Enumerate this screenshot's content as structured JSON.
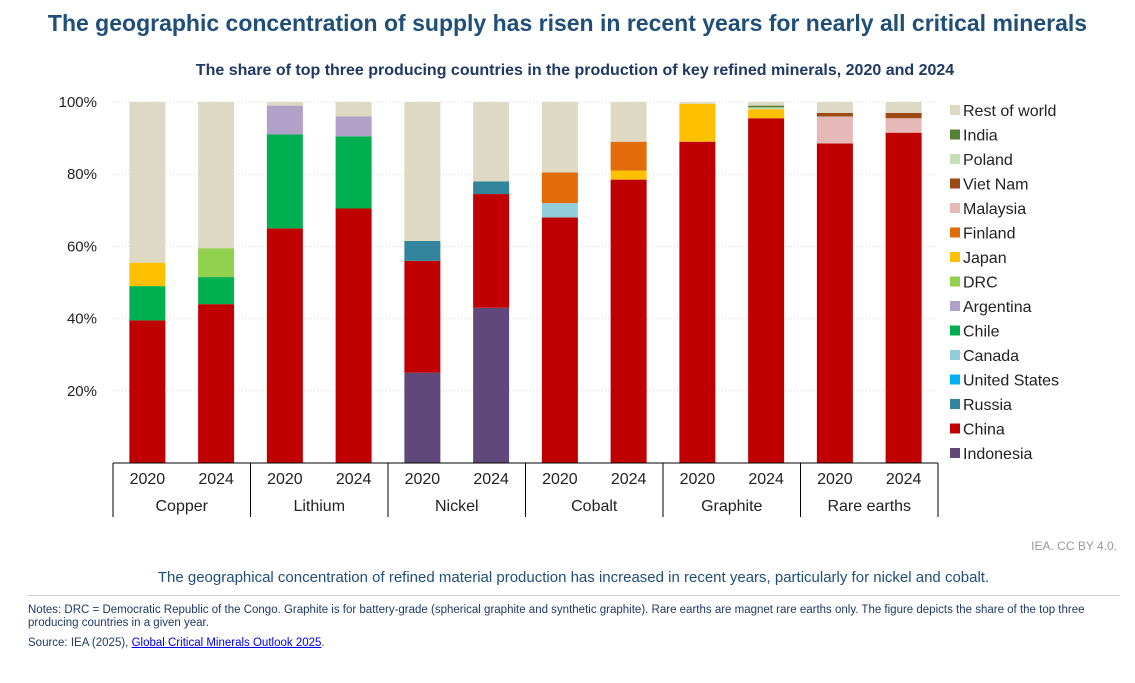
{
  "header": {
    "title": "The geographic concentration of supply has risen in recent years for nearly all critical minerals",
    "subtitle": "The share of top three producing countries in the production of key refined minerals, 2020 and 2024"
  },
  "footer": {
    "credit": "IEA. CC BY 4.0.",
    "caption": "The geographical concentration of refined material production has increased in recent years, particularly for nickel and cobalt.",
    "notes": "Notes: DRC = Democratic Republic of the Congo. Graphite is for battery-grade (spherical graphite and synthetic graphite). Rare earths are magnet rare earths only. The figure depicts the share of the top three producing countries in a given year.",
    "source_prefix": "Source: IEA (2025), ",
    "source_link": "Global Critical Minerals Outlook 2025",
    "source_suffix": "."
  },
  "chart_data": {
    "type": "bar",
    "stacked": true,
    "ylim": [
      0,
      100
    ],
    "yticks": [
      20,
      40,
      60,
      80,
      100
    ],
    "ytick_labels": [
      "20%",
      "40%",
      "60%",
      "80%",
      "100%"
    ],
    "groups": [
      "Copper",
      "Lithium",
      "Nickel",
      "Cobalt",
      "Graphite",
      "Rare earths"
    ],
    "years": [
      "2020",
      "2024"
    ],
    "legend": [
      {
        "name": "Rest of world",
        "color": "#ddd9c3"
      },
      {
        "name": "India",
        "color": "#548235"
      },
      {
        "name": "Poland",
        "color": "#c5e0b4"
      },
      {
        "name": "Viet Nam",
        "color": "#9c4a16"
      },
      {
        "name": "Malaysia",
        "color": "#e6b8b7"
      },
      {
        "name": "Finland",
        "color": "#e26b0a"
      },
      {
        "name": "Japan",
        "color": "#ffc000"
      },
      {
        "name": "DRC",
        "color": "#92d050"
      },
      {
        "name": "Argentina",
        "color": "#b1a0c7"
      },
      {
        "name": "Chile",
        "color": "#00b050"
      },
      {
        "name": "Canada",
        "color": "#92cddc"
      },
      {
        "name": "United States",
        "color": "#00b0f0"
      },
      {
        "name": "Russia",
        "color": "#31849b"
      },
      {
        "name": "China",
        "color": "#c00000"
      },
      {
        "name": "Indonesia",
        "color": "#60497a"
      }
    ],
    "bars": [
      {
        "group": "Copper",
        "year": "2020",
        "segments": [
          {
            "country": "China",
            "value": 39.5
          },
          {
            "country": "Chile",
            "value": 9.5
          },
          {
            "country": "Japan",
            "value": 6.5
          },
          {
            "country": "Rest of world",
            "value": 44.5
          }
        ]
      },
      {
        "group": "Copper",
        "year": "2024",
        "segments": [
          {
            "country": "China",
            "value": 44
          },
          {
            "country": "Chile",
            "value": 7.5
          },
          {
            "country": "DRC",
            "value": 8
          },
          {
            "country": "Rest of world",
            "value": 40.5
          }
        ]
      },
      {
        "group": "Lithium",
        "year": "2020",
        "segments": [
          {
            "country": "China",
            "value": 65
          },
          {
            "country": "Chile",
            "value": 26
          },
          {
            "country": "Argentina",
            "value": 8
          },
          {
            "country": "Rest of world",
            "value": 1
          }
        ]
      },
      {
        "group": "Lithium",
        "year": "2024",
        "segments": [
          {
            "country": "China",
            "value": 70.5
          },
          {
            "country": "Chile",
            "value": 20
          },
          {
            "country": "Argentina",
            "value": 5.5
          },
          {
            "country": "Rest of world",
            "value": 4
          }
        ]
      },
      {
        "group": "Nickel",
        "year": "2020",
        "segments": [
          {
            "country": "Indonesia",
            "value": 25
          },
          {
            "country": "China",
            "value": 31
          },
          {
            "country": "Russia",
            "value": 5.5
          },
          {
            "country": "Rest of world",
            "value": 38.5
          }
        ]
      },
      {
        "group": "Nickel",
        "year": "2024",
        "segments": [
          {
            "country": "Indonesia",
            "value": 43
          },
          {
            "country": "China",
            "value": 31.5
          },
          {
            "country": "Russia",
            "value": 3.5
          },
          {
            "country": "Rest of world",
            "value": 22
          }
        ]
      },
      {
        "group": "Cobalt",
        "year": "2020",
        "segments": [
          {
            "country": "China",
            "value": 68
          },
          {
            "country": "Canada",
            "value": 4
          },
          {
            "country": "Finland",
            "value": 8.5
          },
          {
            "country": "Rest of world",
            "value": 19.5
          }
        ]
      },
      {
        "group": "Cobalt",
        "year": "2024",
        "segments": [
          {
            "country": "China",
            "value": 78.5
          },
          {
            "country": "Japan",
            "value": 2.5
          },
          {
            "country": "Finland",
            "value": 8
          },
          {
            "country": "Rest of world",
            "value": 11
          }
        ]
      },
      {
        "group": "Graphite",
        "year": "2020",
        "segments": [
          {
            "country": "China",
            "value": 89
          },
          {
            "country": "Japan",
            "value": 10.5
          },
          {
            "country": "Rest of world",
            "value": 0.5
          }
        ]
      },
      {
        "group": "Graphite",
        "year": "2024",
        "segments": [
          {
            "country": "China",
            "value": 95.5
          },
          {
            "country": "Japan",
            "value": 2.5
          },
          {
            "country": "Poland",
            "value": 0.5
          },
          {
            "country": "India",
            "value": 0.5
          },
          {
            "country": "Rest of world",
            "value": 1
          }
        ]
      },
      {
        "group": "Rare earths",
        "year": "2020",
        "segments": [
          {
            "country": "China",
            "value": 88.5
          },
          {
            "country": "Malaysia",
            "value": 7.5
          },
          {
            "country": "Viet Nam",
            "value": 1
          },
          {
            "country": "Rest of world",
            "value": 3
          }
        ]
      },
      {
        "group": "Rare earths",
        "year": "2024",
        "segments": [
          {
            "country": "China",
            "value": 91.5
          },
          {
            "country": "Malaysia",
            "value": 4
          },
          {
            "country": "Viet Nam",
            "value": 1.5
          },
          {
            "country": "Rest of world",
            "value": 3
          }
        ]
      }
    ]
  }
}
